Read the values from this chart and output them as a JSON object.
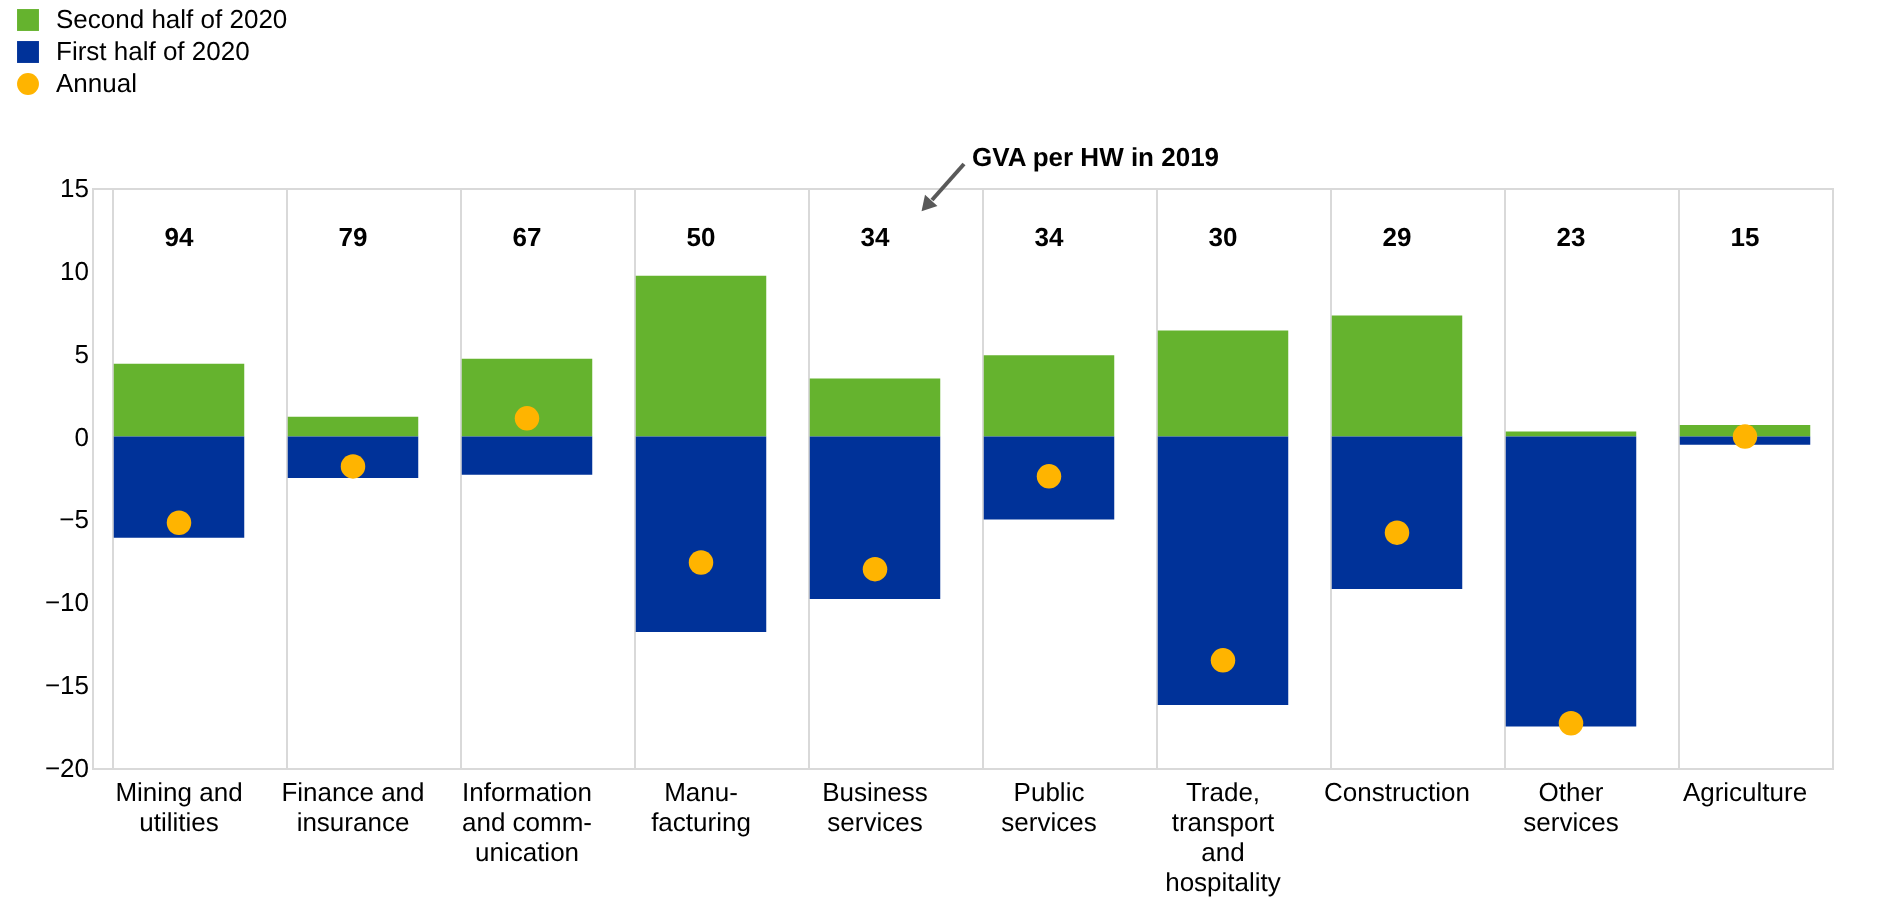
{
  "chart_data": {
    "type": "bar",
    "stacked": true,
    "legend": "top left",
    "grid": "x",
    "categories": [
      "Mining and\nutilities",
      "Finance and\ninsurance",
      "Information\nand comm-\nunication",
      "Manu-\nfacturing",
      "Business\nservices",
      "Public\nservices",
      "Trade,\ntransport\nand\nhospitality",
      "Construction",
      "Other\nservices",
      "Agriculture"
    ],
    "series": [
      {
        "name": "Second half of 2020",
        "color": "#65b32e",
        "values": [
          4.4,
          1.2,
          4.7,
          9.7,
          3.5,
          4.9,
          6.4,
          7.3,
          0.3,
          0.7
        ]
      },
      {
        "name": "First half of 2020",
        "color": "#003299",
        "values": [
          -6.1,
          -2.5,
          -2.3,
          -11.8,
          -9.8,
          -5.0,
          -16.2,
          -9.2,
          -17.5,
          -0.5
        ]
      },
      {
        "name": "Annual",
        "type": "scatter",
        "marker": "circle",
        "color": "#ffb400",
        "values": [
          -5.2,
          -1.8,
          1.1,
          -7.6,
          -8.0,
          -2.4,
          -13.5,
          -5.8,
          -17.3,
          0.0
        ]
      }
    ],
    "ylim": [
      -20,
      15
    ],
    "yticks": [
      -20,
      -15,
      -10,
      -5,
      0,
      5,
      10,
      15
    ],
    "annotations": [
      "94",
      "79",
      "67",
      "50",
      "34",
      "34",
      "30",
      "29",
      "23",
      "15",
      "GVA per HW in 2019"
    ]
  }
}
